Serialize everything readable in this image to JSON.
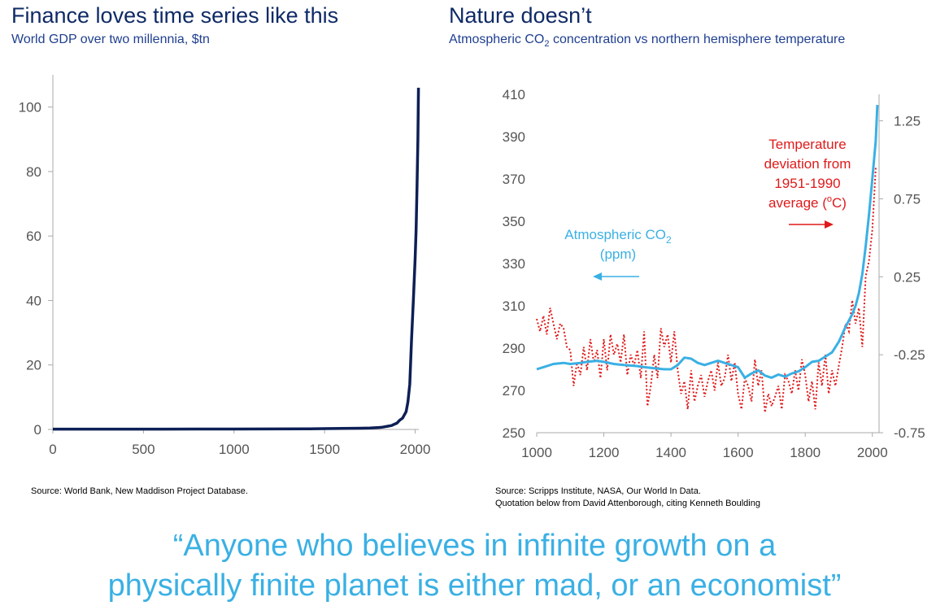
{
  "colors": {
    "gdp_line": "#0d1f55",
    "co2_line": "#3ab0e4",
    "temp_line": "#e01a1a",
    "title": "#0f2a66",
    "quote": "#3ab0e4"
  },
  "left_panel": {
    "title": "Finance loves time series like this",
    "subtitle": "World GDP over two millennia, $tn",
    "source": "Source: World Bank, New Maddison Project Database."
  },
  "right_panel": {
    "title": "Nature doesn’t",
    "subtitle_pre": "Atmospheric CO",
    "subtitle_sub": "2",
    "subtitle_post": " concentration vs northern hemisphere temperature",
    "source": "Source: Scripps Institute, NASA, Our World In Data.",
    "source_note": "Quotation below from David Attenborough, citing Kenneth Boulding",
    "co2_label_line1_pre": "Atmospheric CO",
    "co2_label_line1_sub": "2",
    "co2_label_line2": "(ppm)",
    "temp_label_line1": "Temperature",
    "temp_label_line2": "deviation from",
    "temp_label_line3": "1951-1990",
    "temp_label_line4_pre": "average (",
    "temp_label_line4_sup": "o",
    "temp_label_line4_post": "C)"
  },
  "quote": {
    "line1": "“Anyone who believes in infinite growth on a",
    "line2": "physically finite planet is either mad, or an economist”"
  },
  "chart_data": [
    {
      "type": "line",
      "title": "World GDP over two millennia, $tn",
      "xlim": [
        0,
        2020
      ],
      "ylim": [
        0,
        110
      ],
      "x_ticks": [
        0,
        500,
        1000,
        1500,
        2000
      ],
      "y_ticks": [
        0,
        20,
        40,
        60,
        80,
        100
      ],
      "grid": false,
      "series": [
        {
          "x": [
            0,
            200,
            400,
            600,
            800,
            1000,
            1200,
            1400,
            1500,
            1600,
            1700,
            1750,
            1800,
            1820,
            1850,
            1870,
            1880,
            1900,
            1913,
            1930,
            1940,
            1950,
            1960,
            1970,
            1980,
            1990,
            2000,
            2005,
            2010,
            2015,
            2018
          ],
          "y": [
            0.1,
            0.1,
            0.1,
            0.1,
            0.12,
            0.12,
            0.15,
            0.18,
            0.25,
            0.33,
            0.37,
            0.45,
            0.6,
            0.7,
            1.0,
            1.2,
            1.5,
            2.0,
            2.8,
            3.5,
            4.5,
            5.5,
            8.5,
            14,
            28,
            40,
            53,
            62,
            75,
            90,
            106
          ]
        }
      ]
    },
    {
      "type": "line",
      "title": "Atmospheric CO2 concentration vs northern hemisphere temperature",
      "xlim": [
        1000,
        2020
      ],
      "x_ticks": [
        1000,
        1200,
        1400,
        1600,
        1800,
        2000
      ],
      "y_left_lim": [
        250,
        410
      ],
      "y_left_ticks": [
        250,
        270,
        290,
        310,
        330,
        350,
        370,
        390,
        410
      ],
      "y_right_lim": [
        -0.75,
        1.42
      ],
      "y_right_ticks": [
        -0.75,
        -0.25,
        0.25,
        0.75,
        1.25
      ],
      "y_right_tick_labels": [
        "-0.75",
        "-0.25",
        "0.25",
        "0.75",
        "1.25"
      ],
      "grid": false,
      "series": [
        {
          "name": "Atmospheric CO2 (ppm)",
          "axis": "left",
          "x": [
            1000,
            1020,
            1050,
            1080,
            1100,
            1130,
            1150,
            1180,
            1200,
            1230,
            1260,
            1300,
            1320,
            1350,
            1380,
            1400,
            1420,
            1440,
            1460,
            1480,
            1500,
            1520,
            1540,
            1560,
            1580,
            1600,
            1620,
            1640,
            1660,
            1680,
            1700,
            1720,
            1740,
            1760,
            1780,
            1800,
            1820,
            1840,
            1860,
            1880,
            1900,
            1920,
            1940,
            1950,
            1960,
            1970,
            1980,
            1990,
            2000,
            2010,
            2015
          ],
          "y": [
            280,
            281,
            282.5,
            283,
            282.5,
            283,
            283.5,
            284,
            283.5,
            282.5,
            282,
            281.5,
            281,
            280.5,
            280,
            280,
            282,
            285.5,
            285,
            283,
            282,
            283,
            284,
            283,
            282,
            281,
            276,
            278,
            279.5,
            277,
            276,
            277.5,
            276.5,
            278,
            279,
            281,
            283.5,
            284,
            286,
            288,
            293,
            300,
            306,
            310,
            316,
            325,
            338,
            353,
            370,
            388,
            405
          ]
        },
        {
          "name": "Temperature deviation from 1951-1990 average (oC)",
          "axis": "right",
          "x": [
            1000,
            1010,
            1020,
            1030,
            1040,
            1050,
            1060,
            1070,
            1080,
            1090,
            1100,
            1110,
            1120,
            1130,
            1140,
            1150,
            1160,
            1170,
            1180,
            1190,
            1200,
            1210,
            1220,
            1230,
            1240,
            1250,
            1260,
            1270,
            1280,
            1290,
            1300,
            1310,
            1320,
            1330,
            1340,
            1350,
            1360,
            1370,
            1380,
            1390,
            1400,
            1410,
            1420,
            1430,
            1440,
            1450,
            1460,
            1470,
            1480,
            1490,
            1500,
            1510,
            1520,
            1530,
            1540,
            1550,
            1560,
            1570,
            1580,
            1590,
            1600,
            1610,
            1620,
            1630,
            1640,
            1650,
            1660,
            1670,
            1680,
            1690,
            1700,
            1710,
            1720,
            1730,
            1740,
            1750,
            1760,
            1770,
            1780,
            1790,
            1800,
            1810,
            1820,
            1830,
            1840,
            1850,
            1860,
            1870,
            1880,
            1890,
            1900,
            1910,
            1920,
            1930,
            1940,
            1950,
            1960,
            1970,
            1980,
            1990,
            2000,
            2010
          ],
          "y": [
            -0.02,
            -0.1,
            0.0,
            -0.12,
            0.05,
            -0.05,
            -0.15,
            -0.05,
            -0.08,
            -0.2,
            -0.22,
            -0.45,
            -0.3,
            -0.38,
            -0.2,
            -0.35,
            -0.15,
            -0.3,
            -0.22,
            -0.4,
            -0.15,
            -0.35,
            -0.12,
            -0.25,
            -0.18,
            -0.3,
            -0.12,
            -0.38,
            -0.25,
            -0.32,
            -0.22,
            -0.4,
            -0.1,
            -0.58,
            -0.45,
            -0.25,
            -0.4,
            -0.08,
            -0.2,
            -0.12,
            -0.3,
            -0.1,
            -0.35,
            -0.5,
            -0.42,
            -0.6,
            -0.35,
            -0.55,
            -0.45,
            -0.38,
            -0.52,
            -0.42,
            -0.35,
            -0.48,
            -0.3,
            -0.45,
            -0.4,
            -0.25,
            -0.42,
            -0.3,
            -0.5,
            -0.6,
            -0.4,
            -0.45,
            -0.55,
            -0.28,
            -0.45,
            -0.35,
            -0.62,
            -0.5,
            -0.58,
            -0.52,
            -0.45,
            -0.6,
            -0.38,
            -0.42,
            -0.5,
            -0.35,
            -0.48,
            -0.28,
            -0.38,
            -0.55,
            -0.42,
            -0.6,
            -0.3,
            -0.45,
            -0.25,
            -0.5,
            -0.35,
            -0.45,
            -0.32,
            -0.2,
            -0.05,
            -0.1,
            0.1,
            -0.05,
            0.05,
            -0.2,
            0.25,
            0.35,
            0.55,
            0.95
          ]
        }
      ]
    }
  ]
}
